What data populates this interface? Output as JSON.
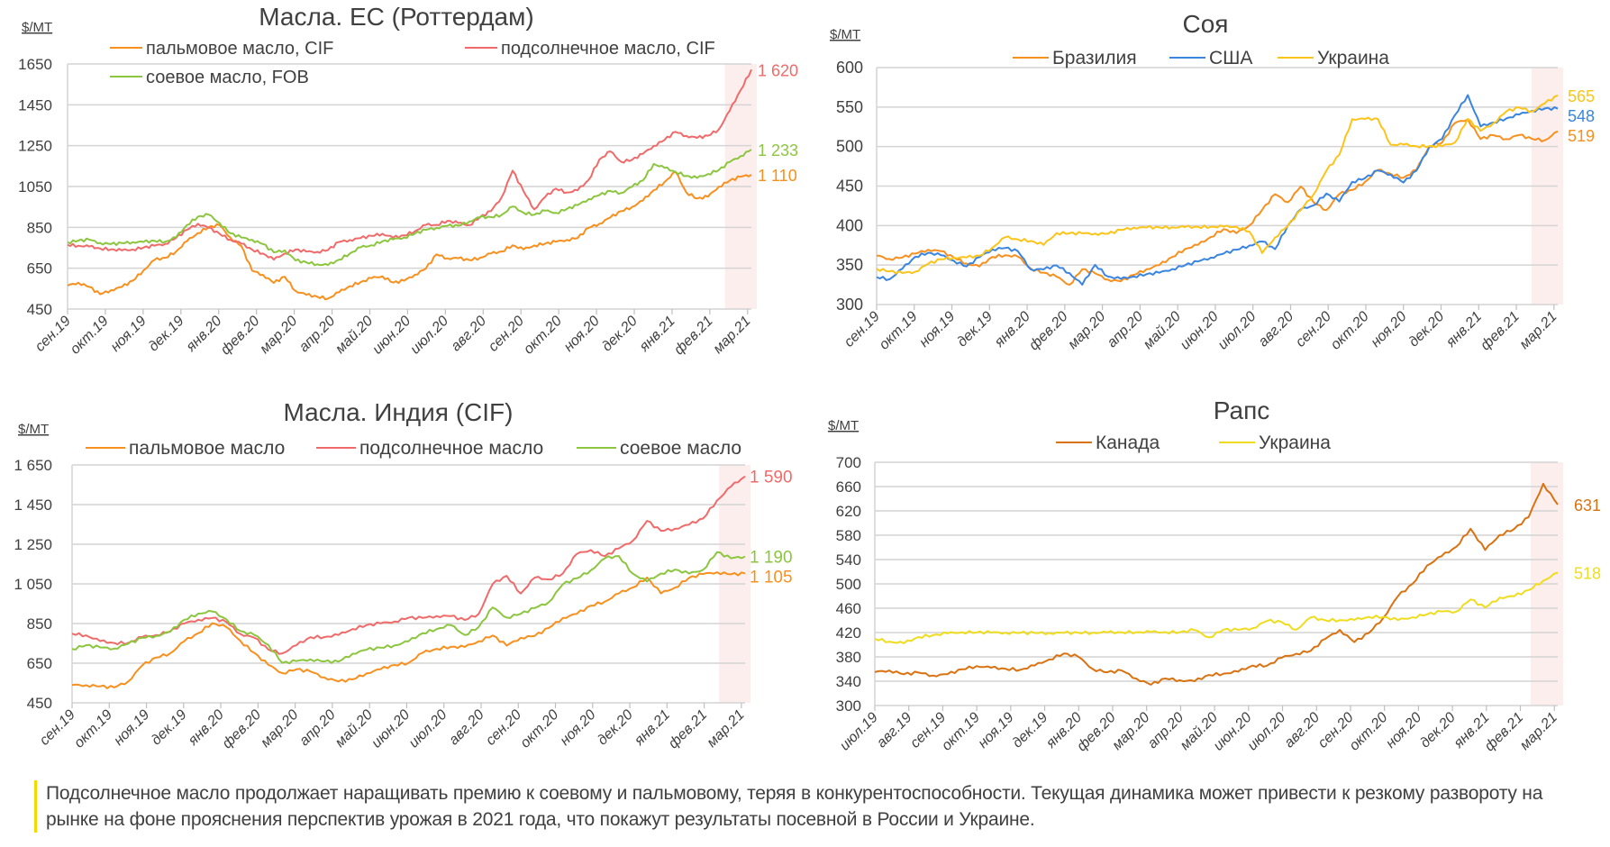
{
  "comment": {
    "text": "Подсолнечное масло продолжает наращивать премию к соевому и пальмовому, теряя в конкурентоспособности. Текущая динамика может привести к резкому развороту на рынке на фоне прояснения перспектив урожая в 2021 года, что покажут результаты посевной в России и Украине.",
    "accent_color": "#f2dc00"
  },
  "chart_data": [
    {
      "id": "eu",
      "type": "line",
      "title": "Масла. ЕС (Роттердам)",
      "unit_label": "$/MT",
      "xlabel": "",
      "ylabel": "$/MT",
      "ylim": [
        450,
        1650
      ],
      "yticks": [
        450,
        650,
        850,
        1050,
        1250,
        1450,
        1650
      ],
      "ytick_labels": [
        "450",
        "650",
        "850",
        "1050",
        "1250",
        "1450",
        "1650"
      ],
      "categories": [
        "сен.19",
        "окт.19",
        "ноя.19",
        "дек.19",
        "янв.20",
        "фев.20",
        "мар.20",
        "апр.20",
        "май.20",
        "июн.20",
        "июл.20",
        "авг.20",
        "сен.20",
        "окт.20",
        "ноя.20",
        "дек.20",
        "янв.21",
        "фев.21",
        "мар.21"
      ],
      "x_range": [
        0,
        18.1
      ],
      "highlight_range": [
        17.4,
        18.4
      ],
      "grid": true,
      "legend_position": "top",
      "series": [
        {
          "name": "пальмовое масло, CIF",
          "color": "#f7901e",
          "last_label": "1 110",
          "values": [
            565,
            580,
            560,
            525,
            545,
            560,
            590,
            640,
            690,
            700,
            730,
            780,
            820,
            850,
            860,
            800,
            760,
            640,
            620,
            580,
            610,
            540,
            520,
            510,
            500,
            530,
            560,
            580,
            600,
            610,
            580,
            590,
            620,
            650,
            720,
            700,
            700,
            690,
            700,
            720,
            730,
            760,
            740,
            760,
            770,
            780,
            790,
            800,
            850,
            870,
            900,
            930,
            950,
            980,
            1030,
            1070,
            1120,
            1020,
            990,
            1000,
            1050,
            1080,
            1100,
            1110
          ]
        },
        {
          "name": "подсолнечное масло, CIF",
          "color": "#f06a6a",
          "last_label": "1 620",
          "values": [
            765,
            760,
            755,
            745,
            740,
            735,
            740,
            750,
            760,
            770,
            800,
            840,
            870,
            850,
            820,
            790,
            770,
            740,
            720,
            690,
            720,
            740,
            730,
            730,
            740,
            780,
            790,
            800,
            810,
            820,
            800,
            810,
            830,
            860,
            860,
            880,
            870,
            860,
            900,
            930,
            1000,
            1130,
            1030,
            940,
            1000,
            1040,
            1020,
            1030,
            1080,
            1180,
            1220,
            1170,
            1180,
            1210,
            1250,
            1280,
            1320,
            1300,
            1290,
            1300,
            1330,
            1420,
            1520,
            1620
          ]
        },
        {
          "name": "соевое масло, FOB",
          "color": "#8cc63f",
          "last_label": "1 233",
          "values": [
            775,
            785,
            790,
            775,
            770,
            775,
            780,
            780,
            785,
            780,
            800,
            860,
            900,
            910,
            870,
            820,
            800,
            790,
            770,
            730,
            740,
            690,
            680,
            670,
            665,
            690,
            720,
            750,
            760,
            780,
            790,
            800,
            820,
            840,
            850,
            860,
            860,
            880,
            900,
            900,
            910,
            950,
            920,
            910,
            930,
            920,
            940,
            960,
            990,
            1010,
            1030,
            1020,
            1050,
            1080,
            1160,
            1140,
            1120,
            1100,
            1090,
            1110,
            1130,
            1170,
            1200,
            1233
          ]
        }
      ]
    },
    {
      "id": "soy",
      "type": "line",
      "title": "Соя",
      "unit_label": "$/MT",
      "xlabel": "",
      "ylabel": "$/MT",
      "ylim": [
        300,
        600
      ],
      "yticks": [
        300,
        350,
        400,
        450,
        500,
        550,
        600
      ],
      "ytick_labels": [
        "300",
        "350",
        "400",
        "450",
        "500",
        "550",
        "600"
      ],
      "categories": [
        "сен.19",
        "окт.19",
        "ноя.19",
        "дек.19",
        "янв.20",
        "фев.20",
        "мар.20",
        "апр.20",
        "май.20",
        "июн.20",
        "июл.20",
        "авг.20",
        "сен.20",
        "окт.20",
        "ноя.20",
        "дек.20",
        "янв.21",
        "фев.21",
        "мар.21"
      ],
      "x_range": [
        0,
        18.1
      ],
      "highlight_range": [
        17.4,
        18.4
      ],
      "grid": true,
      "legend_position": "top",
      "series": [
        {
          "name": "Бразилия",
          "color": "#f7901e",
          "last_label": "519",
          "values": [
            362,
            358,
            360,
            365,
            370,
            368,
            360,
            352,
            348,
            360,
            362,
            360,
            345,
            340,
            335,
            325,
            345,
            340,
            332,
            330,
            338,
            345,
            350,
            360,
            370,
            375,
            385,
            395,
            390,
            400,
            420,
            440,
            430,
            450,
            430,
            420,
            440,
            445,
            455,
            470,
            465,
            460,
            470,
            500,
            505,
            530,
            535,
            510,
            515,
            510,
            515,
            510,
            508,
            519
          ]
        },
        {
          "name": "США",
          "color": "#3a85e0",
          "last_label": "548",
          "values": [
            335,
            332,
            345,
            360,
            365,
            362,
            355,
            348,
            360,
            370,
            372,
            368,
            345,
            345,
            350,
            340,
            325,
            350,
            335,
            332,
            335,
            338,
            340,
            345,
            350,
            355,
            360,
            365,
            370,
            375,
            380,
            370,
            400,
            420,
            425,
            440,
            430,
            455,
            460,
            470,
            465,
            455,
            470,
            500,
            510,
            540,
            565,
            525,
            530,
            535,
            540,
            545,
            548,
            548
          ]
        },
        {
          "name": "Украина",
          "color": "#fcc419",
          "last_label": "565",
          "values": [
            345,
            342,
            340,
            342,
            352,
            358,
            360,
            360,
            362,
            372,
            385,
            382,
            380,
            375,
            390,
            390,
            390,
            390,
            390,
            395,
            398,
            398,
            398,
            398,
            398,
            398,
            398,
            398,
            398,
            392,
            365,
            385,
            400,
            420,
            440,
            470,
            490,
            535,
            535,
            535,
            502,
            502,
            500,
            500,
            500,
            505,
            535,
            520,
            530,
            545,
            550,
            545,
            555,
            565
          ]
        }
      ]
    },
    {
      "id": "india",
      "type": "line",
      "title": "Масла. Индия (CIF)",
      "unit_label": "$/MT",
      "xlabel": "",
      "ylabel": "$/MT",
      "ylim": [
        450,
        1650
      ],
      "yticks": [
        450,
        650,
        850,
        1050,
        1250,
        1450,
        1650
      ],
      "ytick_labels": [
        "450",
        "650",
        "850",
        "1 050",
        "1 250",
        "1 450",
        "1 650"
      ],
      "categories": [
        "сен.19",
        "окт.19",
        "ноя.19",
        "дек.19",
        "янв.20",
        "фев.20",
        "мар.20",
        "апр.20",
        "май.20",
        "июн.20",
        "июл.20",
        "авг.20",
        "сен.20",
        "окт.20",
        "ноя.20",
        "дек.20",
        "янв.21",
        "фев.21",
        "мар.21"
      ],
      "x_range": [
        0,
        18.1
      ],
      "highlight_range": [
        17.4,
        18.4
      ],
      "grid": true,
      "legend_position": "top",
      "series": [
        {
          "name": "пальмовое масло",
          "color": "#f7901e",
          "last_label": "1 105",
          "values": [
            540,
            540,
            535,
            530,
            560,
            640,
            680,
            700,
            760,
            800,
            850,
            830,
            760,
            700,
            640,
            600,
            620,
            610,
            580,
            560,
            570,
            600,
            620,
            640,
            650,
            700,
            720,
            730,
            730,
            760,
            790,
            740,
            780,
            790,
            830,
            880,
            900,
            940,
            960,
            1000,
            1030,
            1080,
            1000,
            1030,
            1080,
            1100,
            1110,
            1100,
            1105
          ]
        },
        {
          "name": "подсолнечное масло",
          "color": "#f06a6a",
          "last_label": "1 590",
          "values": [
            800,
            790,
            760,
            750,
            750,
            780,
            790,
            810,
            850,
            870,
            880,
            860,
            800,
            780,
            720,
            700,
            740,
            780,
            780,
            790,
            820,
            840,
            850,
            860,
            880,
            880,
            890,
            890,
            870,
            900,
            1050,
            1090,
            1000,
            1080,
            1070,
            1100,
            1200,
            1220,
            1190,
            1230,
            1270,
            1370,
            1320,
            1330,
            1350,
            1380,
            1470,
            1540,
            1590
          ]
        },
        {
          "name": "соевое масло",
          "color": "#8cc63f",
          "last_label": "1 190",
          "values": [
            720,
            740,
            730,
            725,
            750,
            780,
            790,
            810,
            870,
            900,
            910,
            870,
            810,
            790,
            740,
            650,
            660,
            670,
            660,
            660,
            700,
            720,
            730,
            740,
            760,
            800,
            820,
            840,
            790,
            830,
            930,
            880,
            900,
            930,
            960,
            1050,
            1080,
            1120,
            1180,
            1190,
            1100,
            1060,
            1100,
            1120,
            1100,
            1120,
            1210,
            1180,
            1190
          ]
        }
      ]
    },
    {
      "id": "rapeseed",
      "type": "line",
      "title": "Рапс",
      "unit_label": "$/MT",
      "xlabel": "",
      "ylabel": "$/MT",
      "ylim": [
        300,
        700
      ],
      "yticks": [
        300,
        340,
        380,
        420,
        460,
        500,
        540,
        580,
        620,
        660,
        700
      ],
      "ytick_labels": [
        "300",
        "340",
        "380",
        "420",
        "460",
        "500",
        "540",
        "580",
        "620",
        "660",
        "700"
      ],
      "categories": [
        "июл.19",
        "авг.19",
        "сен.19",
        "окт.19",
        "ноя.19",
        "дек.19",
        "янв.20",
        "фев.20",
        "мар.20",
        "апр.20",
        "май.20",
        "июн.20",
        "июл.20",
        "авг.20",
        "сен.20",
        "окт.20",
        "ноя.20",
        "дек.20",
        "янв.21",
        "фев.21",
        "мар.21"
      ],
      "x_range": [
        0,
        20.1
      ],
      "highlight_range": [
        19.3,
        20.4
      ],
      "grid": true,
      "legend_position": "top",
      "series": [
        {
          "name": "Канада",
          "color": "#d97211",
          "last_label": "631",
          "values": [
            355,
            358,
            352,
            355,
            350,
            352,
            360,
            365,
            362,
            360,
            358,
            365,
            375,
            385,
            380,
            360,
            355,
            358,
            345,
            335,
            345,
            342,
            340,
            350,
            352,
            355,
            365,
            365,
            378,
            385,
            390,
            410,
            425,
            405,
            420,
            445,
            480,
            500,
            530,
            545,
            560,
            590,
            555,
            580,
            590,
            610,
            665,
            631
          ]
        },
        {
          "name": "Украина",
          "color": "#f0dc1e",
          "last_label": "518",
          "values": [
            410,
            405,
            402,
            412,
            415,
            418,
            420,
            420,
            420,
            420,
            420,
            420,
            420,
            420,
            420,
            420,
            420,
            420,
            420,
            420,
            420,
            420,
            424,
            412,
            425,
            425,
            428,
            440,
            438,
            425,
            445,
            440,
            440,
            440,
            445,
            445,
            440,
            445,
            450,
            455,
            455,
            475,
            462,
            478,
            480,
            490,
            505,
            518
          ]
        }
      ]
    }
  ]
}
